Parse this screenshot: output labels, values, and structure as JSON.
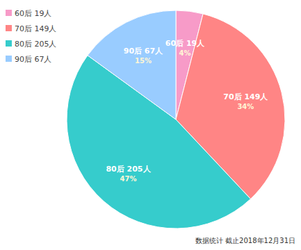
{
  "chart_data": {
    "type": "pie",
    "categories": [
      "60后 19人",
      "70后 149人",
      "80后 205人",
      "90后 67人"
    ],
    "values": [
      4,
      34,
      47,
      15
    ],
    "value_labels": [
      "4%",
      "34%",
      "47%",
      "15%"
    ],
    "colors": [
      "#f79bc8",
      "#ff8585",
      "#36cccc",
      "#99ccff"
    ],
    "data_labels": true,
    "legend": "upper left",
    "note": "数据统计 截止2018年12月31日"
  }
}
